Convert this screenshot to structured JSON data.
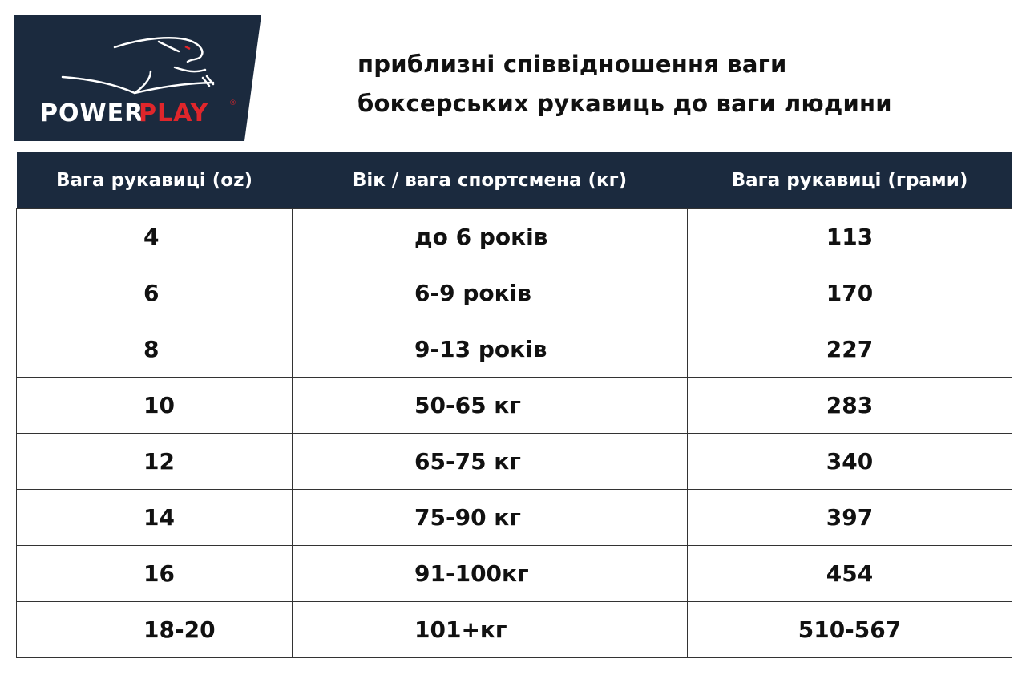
{
  "brand": {
    "name_white": "POWER",
    "name_red": "PLAY",
    "registered": "®",
    "navy": "#1b2a3e",
    "red": "#e0262b"
  },
  "title": {
    "line1": "приблизні співвідношення ваги",
    "line2": "боксерських рукавиць до ваги людини"
  },
  "table": {
    "headers": [
      "Вага рукавиці (oz)",
      "Вік / вага спортсмена (кг)",
      "Вага рукавиці (грами)"
    ],
    "rows": [
      [
        "4",
        "до 6 років",
        "113"
      ],
      [
        "6",
        "6-9 років",
        "170"
      ],
      [
        "8",
        "9-13 років",
        "227"
      ],
      [
        "10",
        "50-65 кг",
        "283"
      ],
      [
        "12",
        "65-75 кг",
        "340"
      ],
      [
        "14",
        "75-90 кг",
        "397"
      ],
      [
        "16",
        "91-100кг",
        "454"
      ],
      [
        "18-20",
        "101+кг",
        "510-567"
      ]
    ]
  }
}
